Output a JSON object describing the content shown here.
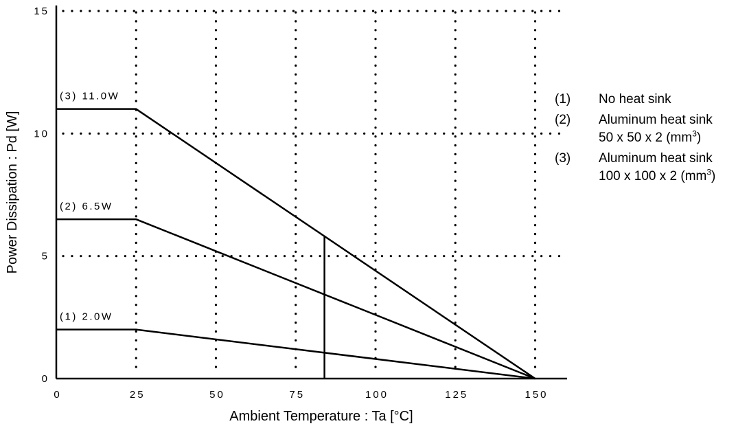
{
  "chart_data": {
    "type": "line",
    "title": "",
    "xlabel": "Ambient Temperature : Ta [°C]",
    "ylabel": "Power Dissipation : Pd [W]",
    "xlim": [
      0,
      160
    ],
    "ylim": [
      0,
      15
    ],
    "x_ticks": [
      "0",
      "25",
      "50",
      "75",
      "100",
      "125",
      "150"
    ],
    "y_ticks": [
      "0",
      "5",
      "10",
      "15"
    ],
    "grid": "dotted",
    "legend_position": "right",
    "series": [
      {
        "id": "1",
        "label": "(1) 2.0W",
        "points": [
          [
            0,
            2.0
          ],
          [
            25,
            2.0
          ],
          [
            150,
            0
          ]
        ]
      },
      {
        "id": "2",
        "label": "(2) 6.5W",
        "points": [
          [
            0,
            6.5
          ],
          [
            25,
            6.5
          ],
          [
            150,
            0
          ]
        ]
      },
      {
        "id": "3",
        "label": "(3) 11.0W",
        "points": [
          [
            0,
            11.0
          ],
          [
            25,
            11.0
          ],
          [
            150,
            0
          ]
        ]
      }
    ],
    "annotations": [
      {
        "type": "vline",
        "x": 84,
        "y_from": 0,
        "y_to": 5.8
      }
    ]
  },
  "legend": {
    "items": [
      {
        "num": "(1)",
        "line1": "No heat sink",
        "line2": "",
        "unit_base": "",
        "unit_sup": "",
        "unit_close": ""
      },
      {
        "num": "(2)",
        "line1": "Aluminum heat sink",
        "line2": "50 x 50 x 2 (mm",
        "unit_sup": "3",
        "unit_close": ")"
      },
      {
        "num": "(3)",
        "line1": "Aluminum heat sink",
        "line2": "100 x 100 x 2 (mm",
        "unit_sup": "3",
        "unit_close": ")"
      }
    ]
  }
}
